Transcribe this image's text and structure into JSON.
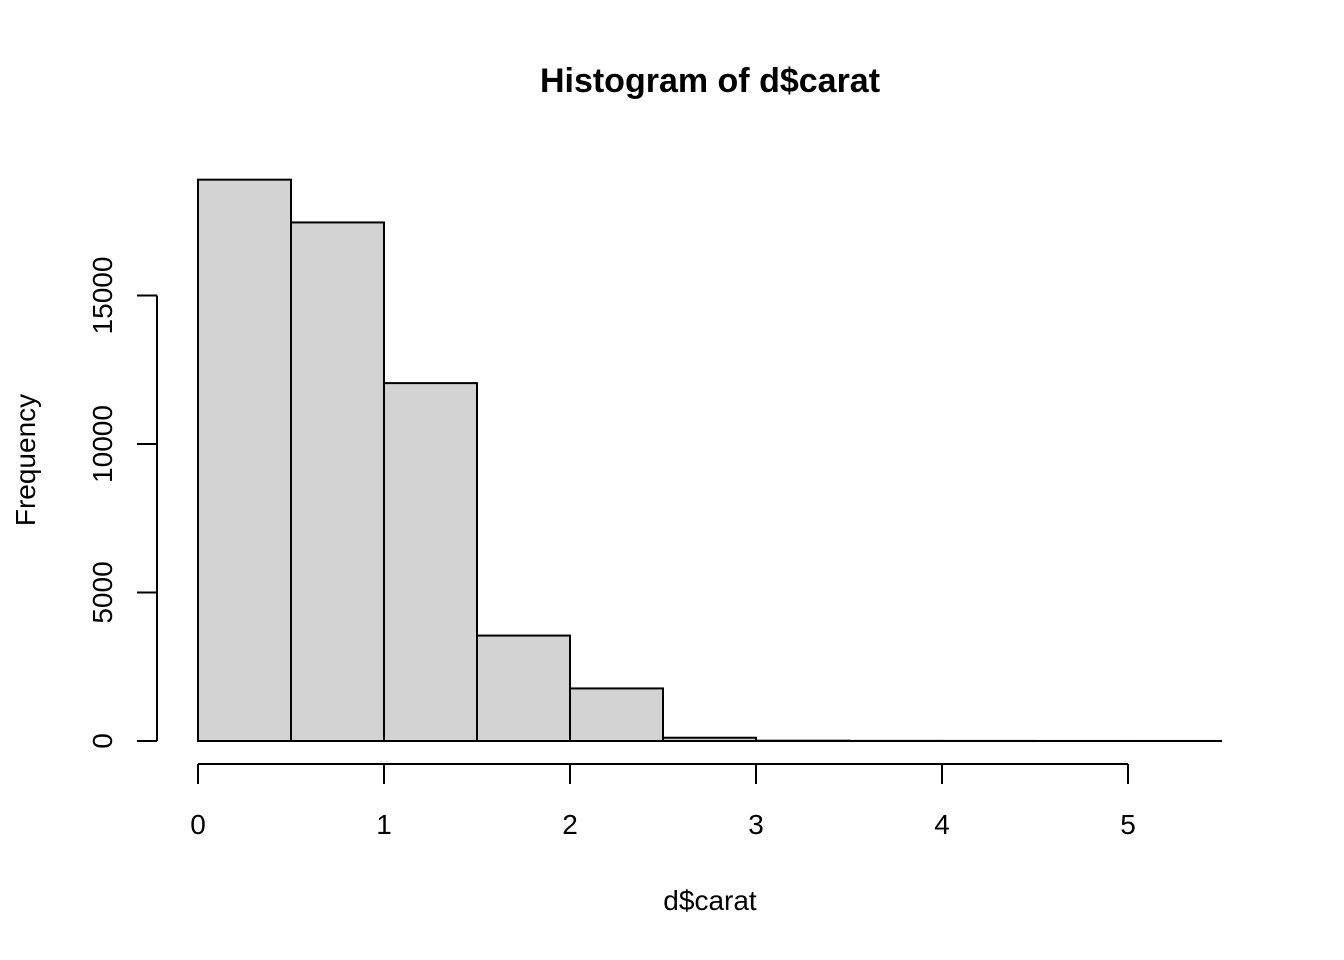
{
  "chart_data": {
    "type": "bar",
    "title": "Histogram of d$carat",
    "xlabel": "d$carat",
    "ylabel": "Frequency",
    "bins": [
      {
        "start": 0.0,
        "end": 0.5,
        "count": 18900
      },
      {
        "start": 0.5,
        "end": 1.0,
        "count": 17460
      },
      {
        "start": 1.0,
        "end": 1.5,
        "count": 12050
      },
      {
        "start": 1.5,
        "end": 2.0,
        "count": 3550
      },
      {
        "start": 2.0,
        "end": 2.5,
        "count": 1770
      },
      {
        "start": 2.5,
        "end": 3.0,
        "count": 110
      },
      {
        "start": 3.0,
        "end": 3.5,
        "count": 10
      },
      {
        "start": 3.5,
        "end": 4.0,
        "count": 4
      },
      {
        "start": 4.0,
        "end": 4.5,
        "count": 3
      },
      {
        "start": 4.5,
        "end": 5.0,
        "count": 1
      },
      {
        "start": 5.0,
        "end": 5.5,
        "count": 1
      }
    ],
    "xlim": [
      0,
      5.5
    ],
    "ylim": [
      0,
      18900
    ],
    "x_ticks": [
      0,
      1,
      2,
      3,
      4,
      5
    ],
    "x_tick_labels": [
      "0",
      "1",
      "2",
      "3",
      "4",
      "5"
    ],
    "y_ticks": [
      0,
      5000,
      10000,
      15000
    ],
    "y_tick_labels": [
      "0",
      "5000",
      "10000",
      "15000"
    ],
    "bar_color": "#d3d3d3",
    "grid": false
  }
}
